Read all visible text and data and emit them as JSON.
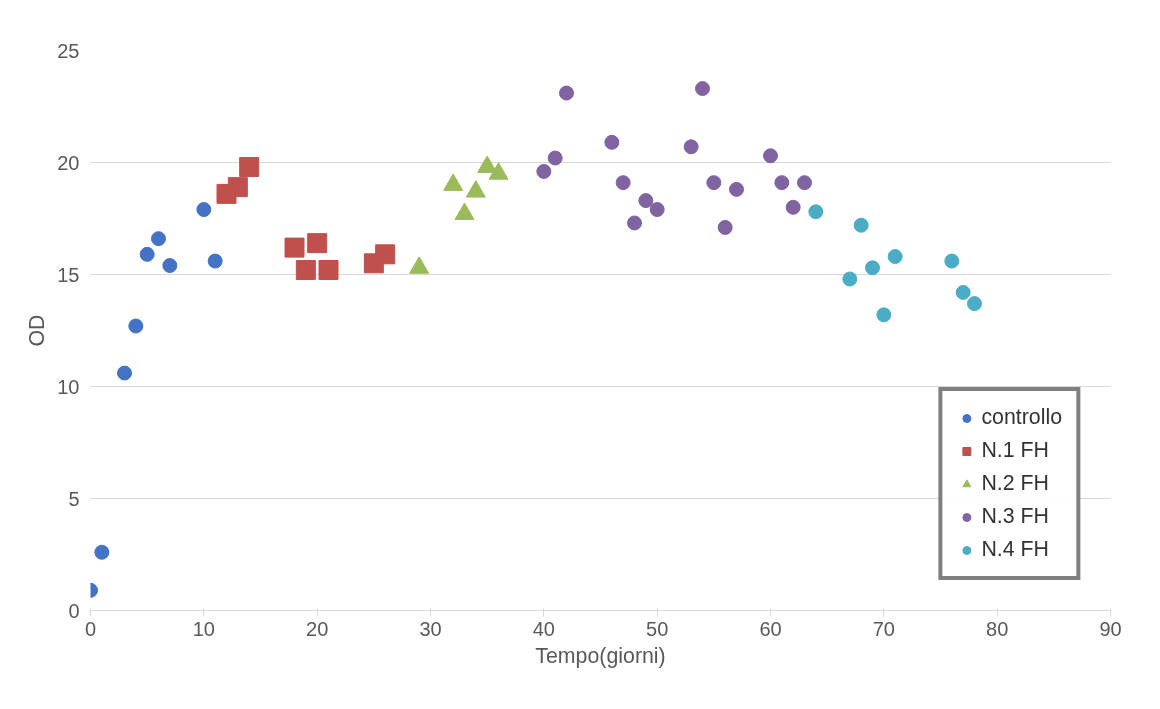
{
  "chart_data": {
    "type": "scatter",
    "xlabel": "Tempo(giorni)",
    "ylabel": "OD",
    "xlim": [
      0,
      90
    ],
    "xticks": [
      0,
      10,
      20,
      30,
      40,
      50,
      60,
      70,
      80,
      90
    ],
    "ylim": [
      0,
      25
    ],
    "yticks": [
      0,
      5,
      10,
      15,
      20,
      25
    ],
    "grid": "y",
    "legend": "bottom right",
    "series": [
      {
        "name": "controllo",
        "color": "#4472c4",
        "marker": "circle",
        "x": [
          0,
          1,
          3,
          4,
          5,
          6,
          7,
          10,
          11
        ],
        "values": [
          0.9,
          2.6,
          10.6,
          12.7,
          15.9,
          16.6,
          15.4,
          17.9,
          15.6
        ]
      },
      {
        "name": "N.1 FH",
        "color": "#c0504d",
        "marker": "square",
        "x": [
          12,
          13,
          14,
          18,
          19,
          20,
          21,
          25,
          26
        ],
        "values": [
          18.6,
          18.9,
          19.8,
          16.2,
          15.2,
          16.4,
          15.2,
          15.5,
          15.9
        ]
      },
      {
        "name": "N.2 FH",
        "color": "#9bbb59",
        "marker": "triangle",
        "x": [
          29,
          32,
          33,
          34,
          35,
          36
        ],
        "values": [
          15.3,
          19.0,
          17.7,
          18.7,
          19.8,
          19.5
        ]
      },
      {
        "name": "N.3 FH",
        "color": "#8064a2",
        "marker": "circle",
        "x": [
          40,
          41,
          42,
          46,
          47,
          48,
          49,
          50,
          53,
          54,
          55,
          56,
          57,
          60,
          61,
          62,
          63
        ],
        "values": [
          19.6,
          20.2,
          23.1,
          20.9,
          19.1,
          17.3,
          18.3,
          17.9,
          20.7,
          23.3,
          19.1,
          17.1,
          18.8,
          20.3,
          19.1,
          18.0,
          19.1
        ]
      },
      {
        "name": "N.4 FH",
        "color": "#4bacc6",
        "marker": "circle",
        "x": [
          64,
          67,
          68,
          69,
          70,
          71,
          76,
          77,
          78
        ],
        "values": [
          17.8,
          14.8,
          17.2,
          15.3,
          13.2,
          15.8,
          15.6,
          14.2,
          13.7
        ]
      }
    ]
  }
}
